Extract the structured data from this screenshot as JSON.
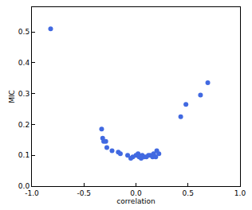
{
  "chart_data": {
    "type": "scatter",
    "x_label": "correlation",
    "y_label": "MIC",
    "color": "#4169e1",
    "marker": "circle",
    "grid": false,
    "x": [
      -0.82,
      -0.33,
      -0.32,
      -0.31,
      -0.29,
      -0.28,
      -0.23,
      -0.17,
      -0.15,
      -0.08,
      -0.05,
      -0.03,
      0.0,
      0.02,
      0.03,
      0.05,
      0.06,
      0.08,
      0.1,
      0.12,
      0.14,
      0.16,
      0.17,
      0.19,
      0.2,
      0.22,
      0.43,
      0.48,
      0.62,
      0.69
    ],
    "values": [
      0.51,
      0.185,
      0.155,
      0.145,
      0.145,
      0.125,
      0.115,
      0.11,
      0.105,
      0.1,
      0.09,
      0.095,
      0.1,
      0.105,
      0.095,
      0.09,
      0.1,
      0.095,
      0.095,
      0.1,
      0.1,
      0.095,
      0.105,
      0.095,
      0.115,
      0.105,
      0.225,
      0.265,
      0.295,
      0.335
    ],
    "xlim": [
      -1,
      1
    ],
    "xticks": [
      {
        "value": -1,
        "label": "-1.0"
      },
      -0.5,
      {
        "value": 0,
        "label": "0.0"
      },
      0.5,
      {
        "value": 1,
        "label": "1.0"
      }
    ],
    "ylim": [
      0,
      0.58
    ],
    "yticks": [
      {
        "value": 0,
        "label": "0.0"
      },
      0.1,
      0.2,
      0.3,
      0.4,
      0.5
    ]
  }
}
